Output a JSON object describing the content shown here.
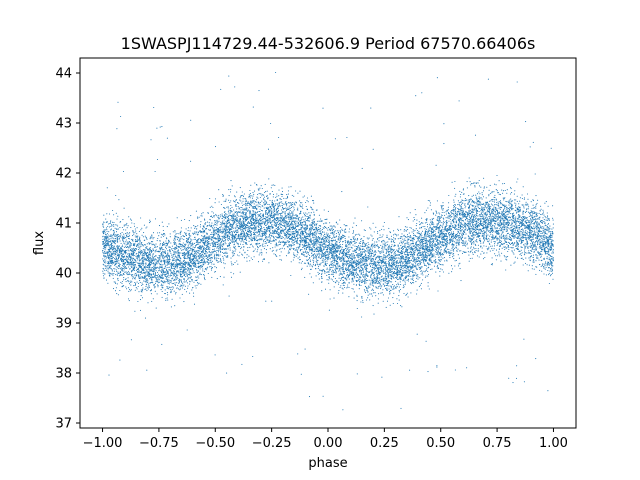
{
  "chart_data": {
    "type": "scatter",
    "title": "1SWASPJ114729.44-532606.9 Period 67570.66406s",
    "xlabel": "phase",
    "ylabel": "flux",
    "xlim": [
      -1.1,
      1.1
    ],
    "ylim": [
      36.9,
      44.3
    ],
    "xticks": [
      -1.0,
      -0.75,
      -0.5,
      -0.25,
      0.0,
      0.25,
      0.5,
      0.75,
      1.0
    ],
    "xtick_labels": [
      "−1.00",
      "−0.75",
      "−0.50",
      "−0.25",
      "0.00",
      "0.25",
      "0.50",
      "0.75",
      "1.00"
    ],
    "yticks": [
      37,
      38,
      39,
      40,
      41,
      42,
      43,
      44
    ],
    "ytick_labels": [
      "37",
      "38",
      "39",
      "40",
      "41",
      "42",
      "43",
      "44"
    ],
    "grid": false,
    "legend": "none",
    "point_color": "#1f77b4",
    "series": [
      {
        "x": [
          -1.0,
          -0.95,
          -0.9,
          -0.85,
          -0.8,
          -0.75,
          -0.7,
          -0.65,
          -0.6,
          -0.55,
          -0.5,
          -0.45,
          -0.4,
          -0.35,
          -0.3,
          -0.25,
          -0.2,
          -0.15,
          -0.1,
          -0.05,
          0.0,
          0.05,
          0.1,
          0.15,
          0.2,
          0.25,
          0.3,
          0.35,
          0.4,
          0.45,
          0.5,
          0.55,
          0.6,
          0.65,
          0.7,
          0.75,
          0.8,
          0.85,
          0.9,
          0.95,
          1.0
        ],
        "y_center": [
          40.55,
          40.45,
          40.35,
          40.25,
          40.18,
          40.15,
          40.15,
          40.22,
          40.35,
          40.5,
          40.65,
          40.8,
          40.92,
          41.0,
          41.05,
          41.05,
          41.0,
          40.9,
          40.75,
          40.6,
          40.45,
          40.32,
          40.22,
          40.16,
          40.14,
          40.15,
          40.2,
          40.28,
          40.42,
          40.58,
          40.72,
          40.85,
          40.95,
          41.02,
          41.05,
          41.05,
          41.0,
          40.92,
          40.8,
          40.68,
          40.55
        ],
        "y_spread": 0.55,
        "n_points": 12000
      }
    ]
  }
}
